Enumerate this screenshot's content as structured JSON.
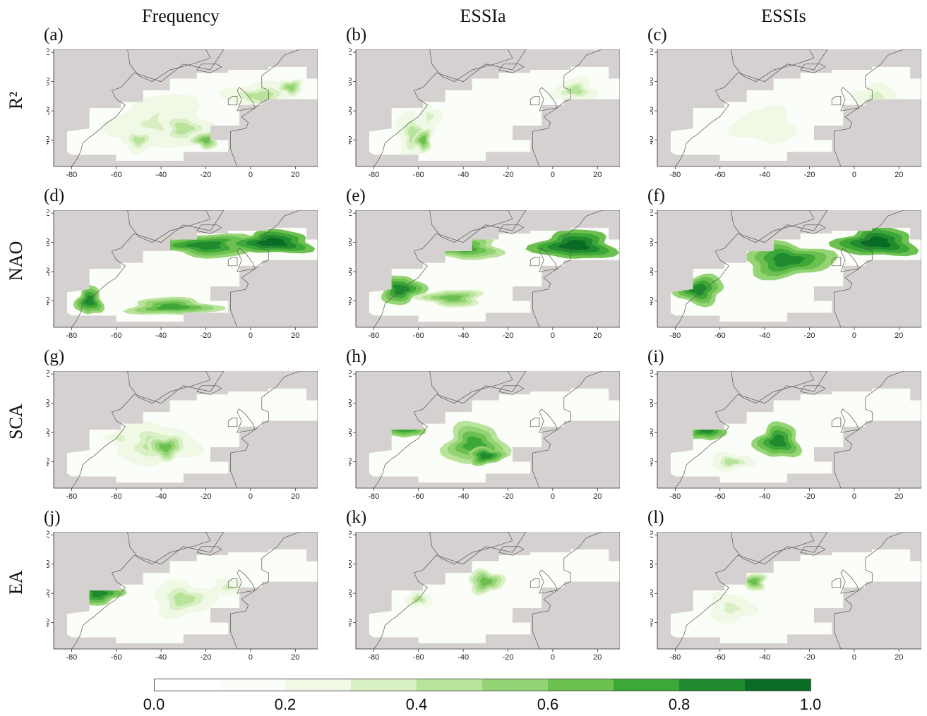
{
  "columns": [
    "Frequency",
    "ESSIa",
    "ESSIs"
  ],
  "rows": [
    "R²",
    "NAO",
    "SCA",
    "EA"
  ],
  "panel_labels": [
    "(a)",
    "(b)",
    "(c)",
    "(d)",
    "(e)",
    "(f)",
    "(g)",
    "(h)",
    "(i)",
    "(j)",
    "(k)",
    "(l)"
  ],
  "axes": {
    "lon_ticks": [
      -80,
      -60,
      -40,
      -20,
      0,
      20
    ],
    "lat_ticks": [
      40,
      50,
      60,
      70
    ],
    "lon_range": [
      -88,
      30
    ],
    "lat_range": [
      31,
      71
    ]
  },
  "colorbar": {
    "ticks": [
      "0.0",
      "0.2",
      "0.4",
      "0.6",
      "0.8",
      "1.0"
    ],
    "range": [
      0,
      1
    ],
    "colors": [
      "#ffffff",
      "#fbfdf8",
      "#f0f9e6",
      "#d8f0c3",
      "#b8e39a",
      "#95d474",
      "#6cc050",
      "#3da737",
      "#1f8a2e",
      "#0a6b24"
    ],
    "land_color": "#d5d1d0",
    "coast_color": "#555555"
  }
}
